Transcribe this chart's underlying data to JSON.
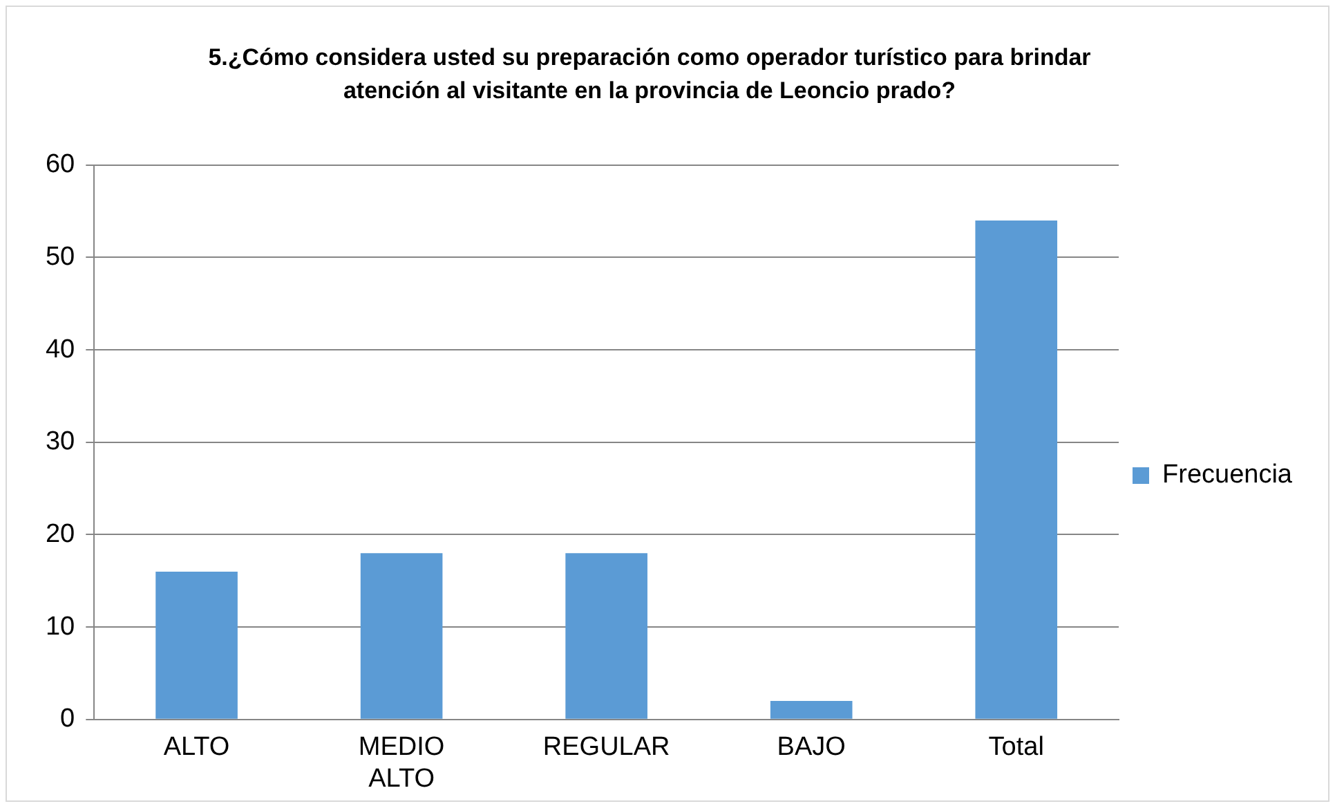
{
  "chart_data": {
    "type": "bar",
    "title": "5.¿Cómo considera usted su preparación como operador turístico para brindar atención al visitante en la provincia de Leoncio prado?",
    "categories": [
      "ALTO",
      "MEDIO ALTO",
      "REGULAR",
      "BAJO",
      "Total"
    ],
    "series": [
      {
        "name": "Frecuencia",
        "color": "#5b9bd5",
        "values": [
          16,
          18,
          18,
          2,
          54
        ]
      }
    ],
    "ylim": [
      0,
      60
    ],
    "yticks": [
      0,
      10,
      20,
      30,
      40,
      50,
      60
    ],
    "grid": "y",
    "legend": "right"
  }
}
